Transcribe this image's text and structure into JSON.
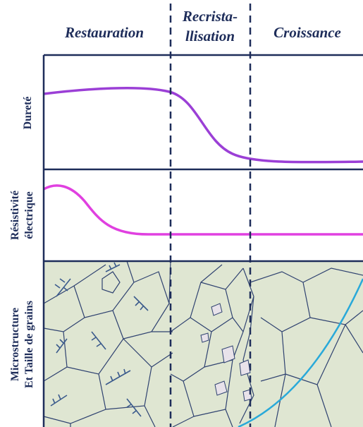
{
  "phases": [
    "Restauration",
    "Recrista-",
    "llisation",
    "Croissance"
  ],
  "rows": {
    "hardness": "Dureté",
    "resistivity": [
      "Résistivité",
      "électrique"
    ],
    "microstructure": [
      "Microstructure",
      "Et Taille de grains"
    ]
  }
}
